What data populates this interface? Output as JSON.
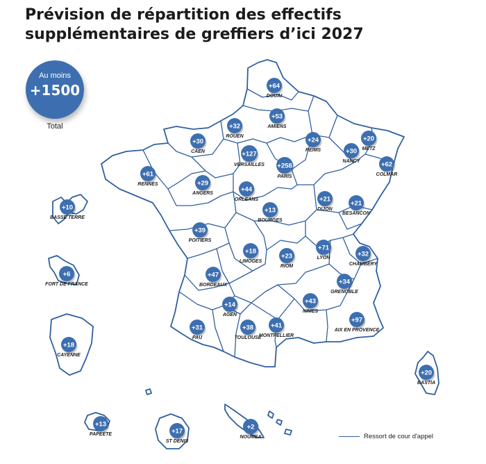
{
  "title": "Prévision de répartition des effectifs supplémentaires de greffiers d’ici 2027",
  "total": {
    "prefix": "Au moins",
    "value": "+1500",
    "label": "Total"
  },
  "legend": {
    "label": "Ressort de cour d'appel"
  },
  "courts": [
    {
      "id": "douai",
      "name": "DOUAI",
      "value": "+64"
    },
    {
      "id": "amiens",
      "name": "AMIENS",
      "value": "+53"
    },
    {
      "id": "rouen",
      "name": "ROUEN",
      "value": "+32"
    },
    {
      "id": "caen",
      "name": "CAEN",
      "value": "+30"
    },
    {
      "id": "reims",
      "name": "REIMS",
      "value": "+24"
    },
    {
      "id": "metz",
      "name": "METZ",
      "value": "+20"
    },
    {
      "id": "nancy",
      "name": "NANCY",
      "value": "+30"
    },
    {
      "id": "colmar",
      "name": "COLMAR",
      "value": "+62"
    },
    {
      "id": "versailles",
      "name": "VERSAILLES",
      "value": "+127"
    },
    {
      "id": "paris",
      "name": "PARIS",
      "value": "+258"
    },
    {
      "id": "rennes",
      "name": "RENNES",
      "value": "+61"
    },
    {
      "id": "angers",
      "name": "ANGERS",
      "value": "+29"
    },
    {
      "id": "orleans",
      "name": "ORLEANS",
      "value": "+44"
    },
    {
      "id": "dijon",
      "name": "DIJON",
      "value": "+21"
    },
    {
      "id": "besancon",
      "name": "BESANCON",
      "value": "+21"
    },
    {
      "id": "bourges",
      "name": "BOURGES",
      "value": "+13"
    },
    {
      "id": "poitiers",
      "name": "POITIERS",
      "value": "+39"
    },
    {
      "id": "limoges",
      "name": "LIMOGES",
      "value": "+18"
    },
    {
      "id": "riom",
      "name": "RIOM",
      "value": "+23"
    },
    {
      "id": "lyon",
      "name": "LYON",
      "value": "+71"
    },
    {
      "id": "chambery",
      "name": "CHAMBERY",
      "value": "+32"
    },
    {
      "id": "grenoble",
      "name": "GRENOBLE",
      "value": "+34"
    },
    {
      "id": "bordeaux",
      "name": "BORDEAUX",
      "value": "+47"
    },
    {
      "id": "agen",
      "name": "AGEN",
      "value": "+14"
    },
    {
      "id": "nimes",
      "name": "NIMES",
      "value": "+43"
    },
    {
      "id": "aix",
      "name": "AIX EN PROVENCE",
      "value": "+97"
    },
    {
      "id": "pau",
      "name": "PAU",
      "value": "+31"
    },
    {
      "id": "toulouse",
      "name": "TOULOUSE",
      "value": "+38"
    },
    {
      "id": "montpellier",
      "name": "MONTPELLIER",
      "value": "+41"
    },
    {
      "id": "bastia",
      "name": "BASTIA",
      "value": "+20"
    },
    {
      "id": "basse_terre",
      "name": "BASSE TERRE",
      "value": "+10"
    },
    {
      "id": "fort_de_france",
      "name": "FORT DE FRANCE",
      "value": "+6"
    },
    {
      "id": "cayenne",
      "name": "CAYENNE",
      "value": "+18"
    },
    {
      "id": "papeete",
      "name": "PAPEETE",
      "value": "+13"
    },
    {
      "id": "st_denis",
      "name": "ST DENIS",
      "value": "+17"
    },
    {
      "id": "noumea",
      "name": "NOUMEA",
      "value": "+2"
    }
  ]
}
